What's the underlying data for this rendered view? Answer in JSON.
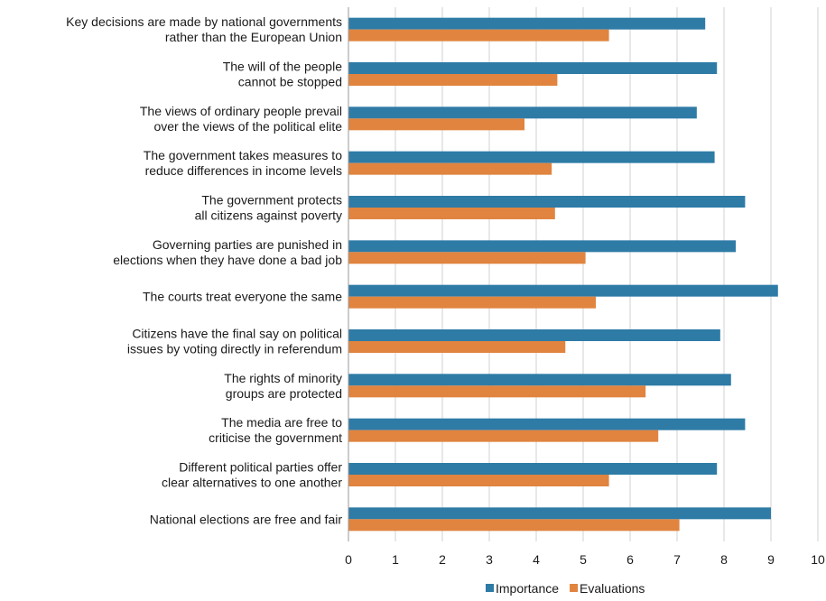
{
  "chart_data": {
    "type": "bar",
    "orientation": "horizontal",
    "categories": [
      "Key decisions are made by national governments\nrather than the European Union",
      "The will of the people\ncannot be stopped",
      "The views of ordinary people prevail\nover the views of the political elite",
      "The government takes measures to\nreduce differences in income levels",
      "The government protects\nall citizens against poverty",
      "Governing parties are punished in\nelections when they have done a bad job",
      "The courts treat everyone the same",
      "Citizens have the final say on political\nissues by voting directly in referendum",
      "The rights of minority\ngroups are protected",
      "The media are free to\ncriticise the government",
      "Different political parties offer\nclear alternatives to one another",
      "National elections are free and fair"
    ],
    "series": [
      {
        "name": "Importance",
        "color": "#2E7BA6",
        "values": [
          7.6,
          7.85,
          7.42,
          7.8,
          8.45,
          8.25,
          9.15,
          7.92,
          8.15,
          8.45,
          7.85,
          9.0
        ]
      },
      {
        "name": "Evaluations",
        "color": "#E0843F",
        "values": [
          5.55,
          4.45,
          3.75,
          4.33,
          4.4,
          5.05,
          5.27,
          4.62,
          6.33,
          6.6,
          5.55,
          7.05
        ]
      }
    ],
    "xlim": [
      0,
      10
    ],
    "xticks": [
      "0",
      "1",
      "2",
      "3",
      "4",
      "5",
      "6",
      "7",
      "8",
      "9",
      "10"
    ],
    "grid": "vertical",
    "legend": "bottom-center"
  }
}
